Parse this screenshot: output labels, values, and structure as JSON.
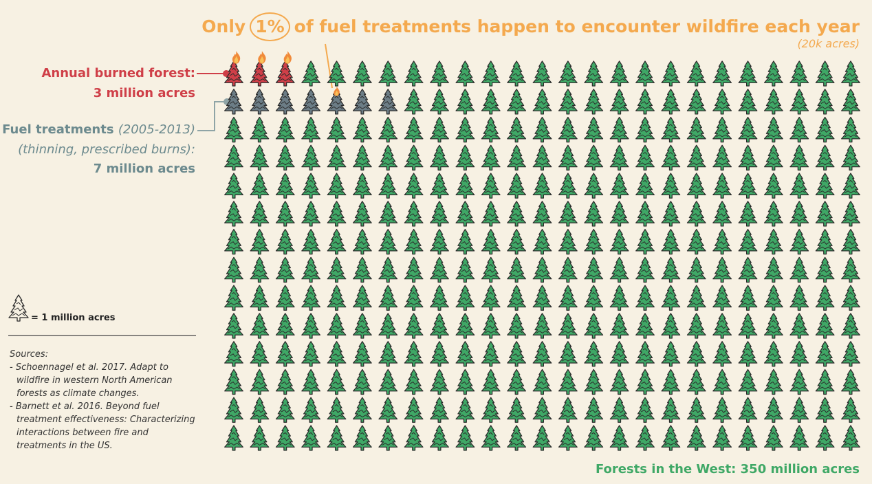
{
  "chart_data": {
    "type": "pictogram",
    "title_start": "Only",
    "highlight": {
      "value": 1,
      "label": "1%"
    },
    "title_end": "of fuel treatments happen to encounter wildfire each year",
    "subtitle": "(20k acres)",
    "columns": 25,
    "total": {
      "name": "Forests in the West:",
      "color": "#3fa866",
      "values": [
        350
      ],
      "value_labels": [
        "350 million acres"
      ]
    },
    "series": [
      {
        "name": "Annual burned forest:",
        "color": "#cf3f48",
        "values": [
          3
        ],
        "value_labels": [
          "3 million acres"
        ]
      },
      {
        "name": "Fuel treatments",
        "period": "(2005-2013)",
        "note": "(thinning, prescribed burns):",
        "color": "#6c7d86",
        "values": [
          7
        ],
        "value_labels": [
          "7 million acres"
        ]
      }
    ],
    "legend": {
      "value": 1,
      "label": "= 1 million acres"
    },
    "sources": {
      "heading": "Sources:",
      "items": [
        "- Schoennagel et al. 2017. Adapt to wildfire in western North American forests as climate changes.",
        "- Barnett et al. 2016. Beyond fuel treatment effectiveness: Characterizing interactions between fire and treatments in the US."
      ]
    }
  }
}
